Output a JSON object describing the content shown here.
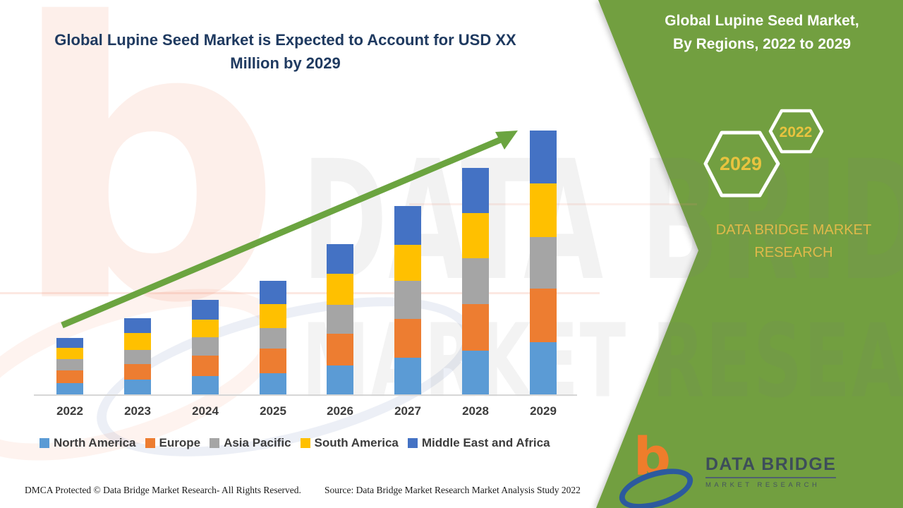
{
  "main_title": "Global Lupine Seed Market is Expected to Account for USD XX Million by 2029",
  "panel": {
    "title_line1": "Global Lupine Seed Market,",
    "title_line2": "By Regions, 2022 to 2029",
    "hex_large_label": "2029",
    "hex_small_label": "2022",
    "brand_text": "DATA BRIDGE MARKET RESEARCH",
    "bg_color": "#729F41",
    "accent_text_color": "#E8C33F"
  },
  "logo": {
    "name_line": "DATA BRIDGE",
    "sub_line": "MARKET RESEARCH"
  },
  "watermark": {
    "letter": "b",
    "line1": "DATA BRIDGE",
    "line2": "MARKET RESEARCH"
  },
  "footer": {
    "left_text": "DMCA Protected © Data Bridge Market Research- All Rights Reserved.",
    "source_text": "Source: Data Bridge Market Research Market Analysis Study 2022"
  },
  "chart_data": {
    "type": "bar",
    "stacked": true,
    "title": "Global Lupine Seed Market is Expected to Account for USD XX Million by 2029",
    "xlabel": "",
    "ylabel": "",
    "y_axis_labeled": false,
    "values_unit": "relative height units (no value axis shown in figure)",
    "grid": false,
    "legend_position": "bottom",
    "trend_arrow": true,
    "arrow_color": "#6BA440",
    "categories": [
      "2022",
      "2023",
      "2024",
      "2025",
      "2026",
      "2027",
      "2028",
      "2029"
    ],
    "series": [
      {
        "name": "North America",
        "color": "#5B9BD5",
        "values": [
          16,
          21,
          26,
          30,
          41,
          52,
          62,
          74
        ]
      },
      {
        "name": "Europe",
        "color": "#ED7D31",
        "values": [
          18,
          22,
          29,
          35,
          45,
          55,
          66,
          76
        ]
      },
      {
        "name": "Asia Pacific",
        "color": "#A5A5A5",
        "values": [
          16,
          20,
          26,
          29,
          41,
          54,
          65,
          73
        ]
      },
      {
        "name": "South America",
        "color": "#FFC000",
        "values": [
          16,
          24,
          25,
          34,
          44,
          51,
          64,
          76
        ]
      },
      {
        "name": "Middle East and Africa",
        "color": "#4472C4",
        "values": [
          14,
          21,
          28,
          33,
          42,
          55,
          64,
          75
        ]
      }
    ],
    "totals": [
      80,
      108,
      134,
      161,
      213,
      267,
      321,
      374
    ]
  }
}
